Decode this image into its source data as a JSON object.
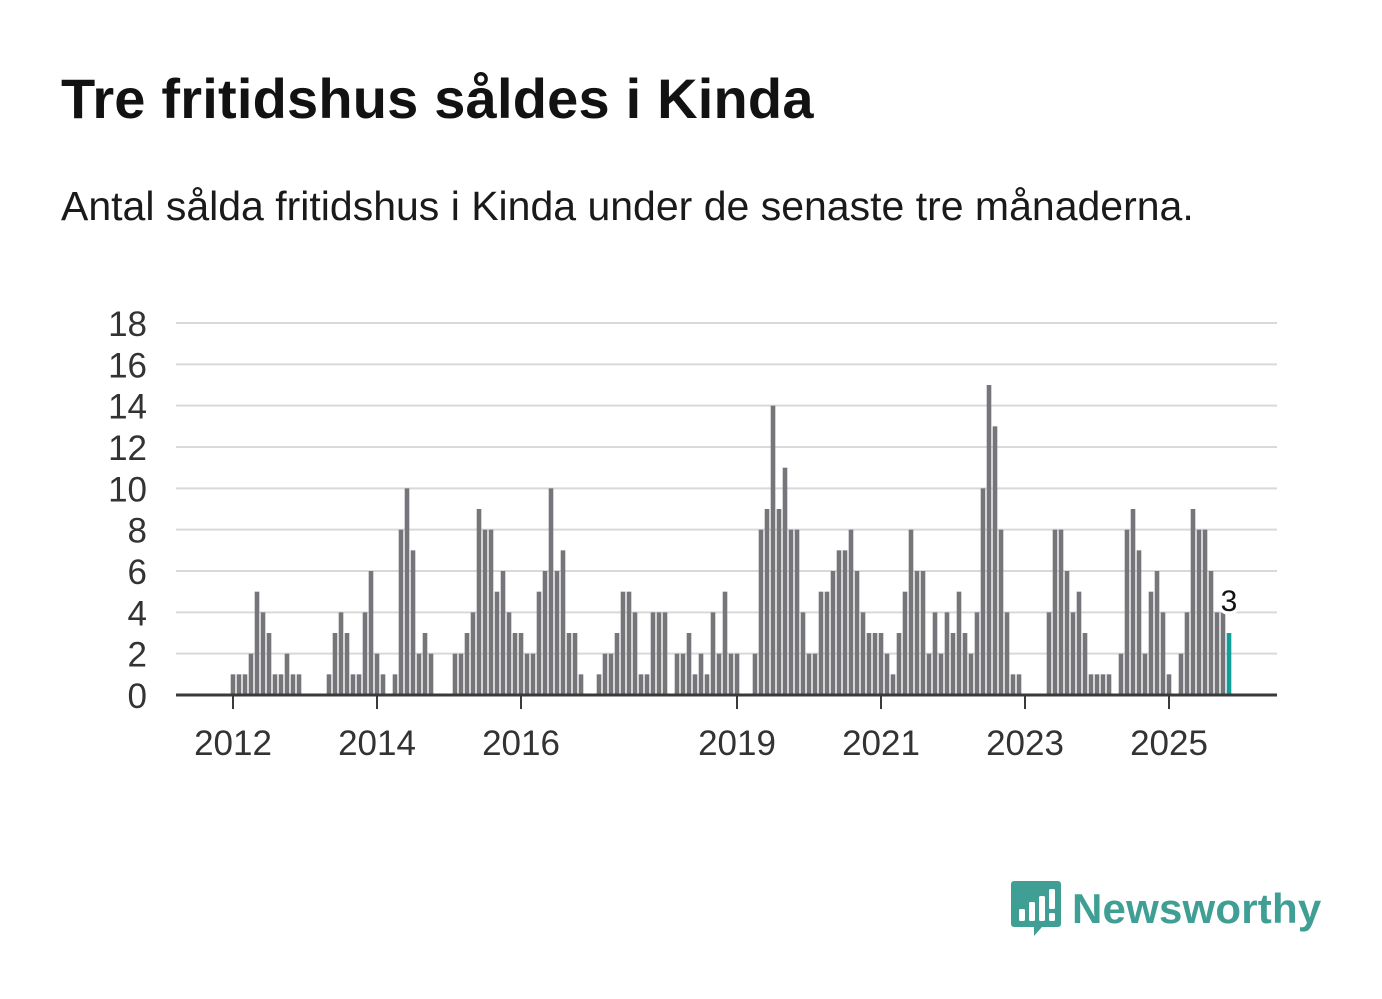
{
  "chart_title": "Tre fritidshus såldes i Kinda",
  "chart_subtitle": "Antal sålda fritidshus i Kinda under de senaste tre månaderna.",
  "brand": {
    "name": "Newsworthy",
    "logo_icon": "bar-chart-speech-bubble-icon",
    "color": "#3f9f94"
  },
  "colors": {
    "bar": "#76757a",
    "highlight": "#139e99",
    "grid": "#d9d9d9",
    "axis": "#3a3a3a",
    "text": "#121212"
  },
  "chart_data": {
    "type": "bar",
    "title": "Tre fritidshus såldes i Kinda",
    "xlabel": "",
    "ylabel": "",
    "ylim": [
      0,
      18
    ],
    "yticks": [
      "0",
      "2",
      "4",
      "6",
      "8",
      "10",
      "12",
      "14",
      "16",
      "18"
    ],
    "x_tick_labels": [
      {
        "label": "2012",
        "index": 9
      },
      {
        "label": "2014",
        "index": 33
      },
      {
        "label": "2016",
        "index": 57
      },
      {
        "label": "2019",
        "index": 93
      },
      {
        "label": "2021",
        "index": 117
      },
      {
        "label": "2023",
        "index": 141
      },
      {
        "label": "2025",
        "index": 165
      }
    ],
    "grid": true,
    "values": [
      0,
      0,
      0,
      0,
      0,
      0,
      0,
      0,
      0,
      1,
      1,
      1,
      2,
      5,
      4,
      3,
      1,
      1,
      2,
      1,
      1,
      0,
      0,
      0,
      0,
      1,
      3,
      4,
      3,
      1,
      1,
      4,
      6,
      2,
      1,
      0,
      1,
      8,
      10,
      7,
      2,
      3,
      2,
      0,
      0,
      0,
      2,
      2,
      3,
      4,
      9,
      8,
      8,
      5,
      6,
      4,
      3,
      3,
      2,
      2,
      5,
      6,
      10,
      6,
      7,
      3,
      3,
      1,
      0,
      0,
      1,
      2,
      2,
      3,
      5,
      5,
      4,
      1,
      1,
      4,
      4,
      4,
      0,
      2,
      2,
      3,
      1,
      2,
      1,
      4,
      2,
      5,
      2,
      2,
      0,
      0,
      2,
      8,
      9,
      14,
      9,
      11,
      8,
      8,
      4,
      2,
      2,
      5,
      5,
      6,
      7,
      7,
      8,
      6,
      4,
      3,
      3,
      3,
      2,
      1,
      3,
      5,
      8,
      6,
      6,
      2,
      4,
      2,
      4,
      3,
      5,
      3,
      2,
      4,
      10,
      15,
      13,
      8,
      4,
      1,
      1,
      0,
      0,
      0,
      0,
      4,
      8,
      8,
      6,
      4,
      5,
      3,
      1,
      1,
      1,
      1,
      0,
      2,
      8,
      9,
      7,
      2,
      5,
      6,
      4,
      1,
      0,
      2,
      4,
      9,
      8,
      8,
      6,
      4,
      4,
      3
    ],
    "highlight_index": 175,
    "highlight_label": "3"
  }
}
